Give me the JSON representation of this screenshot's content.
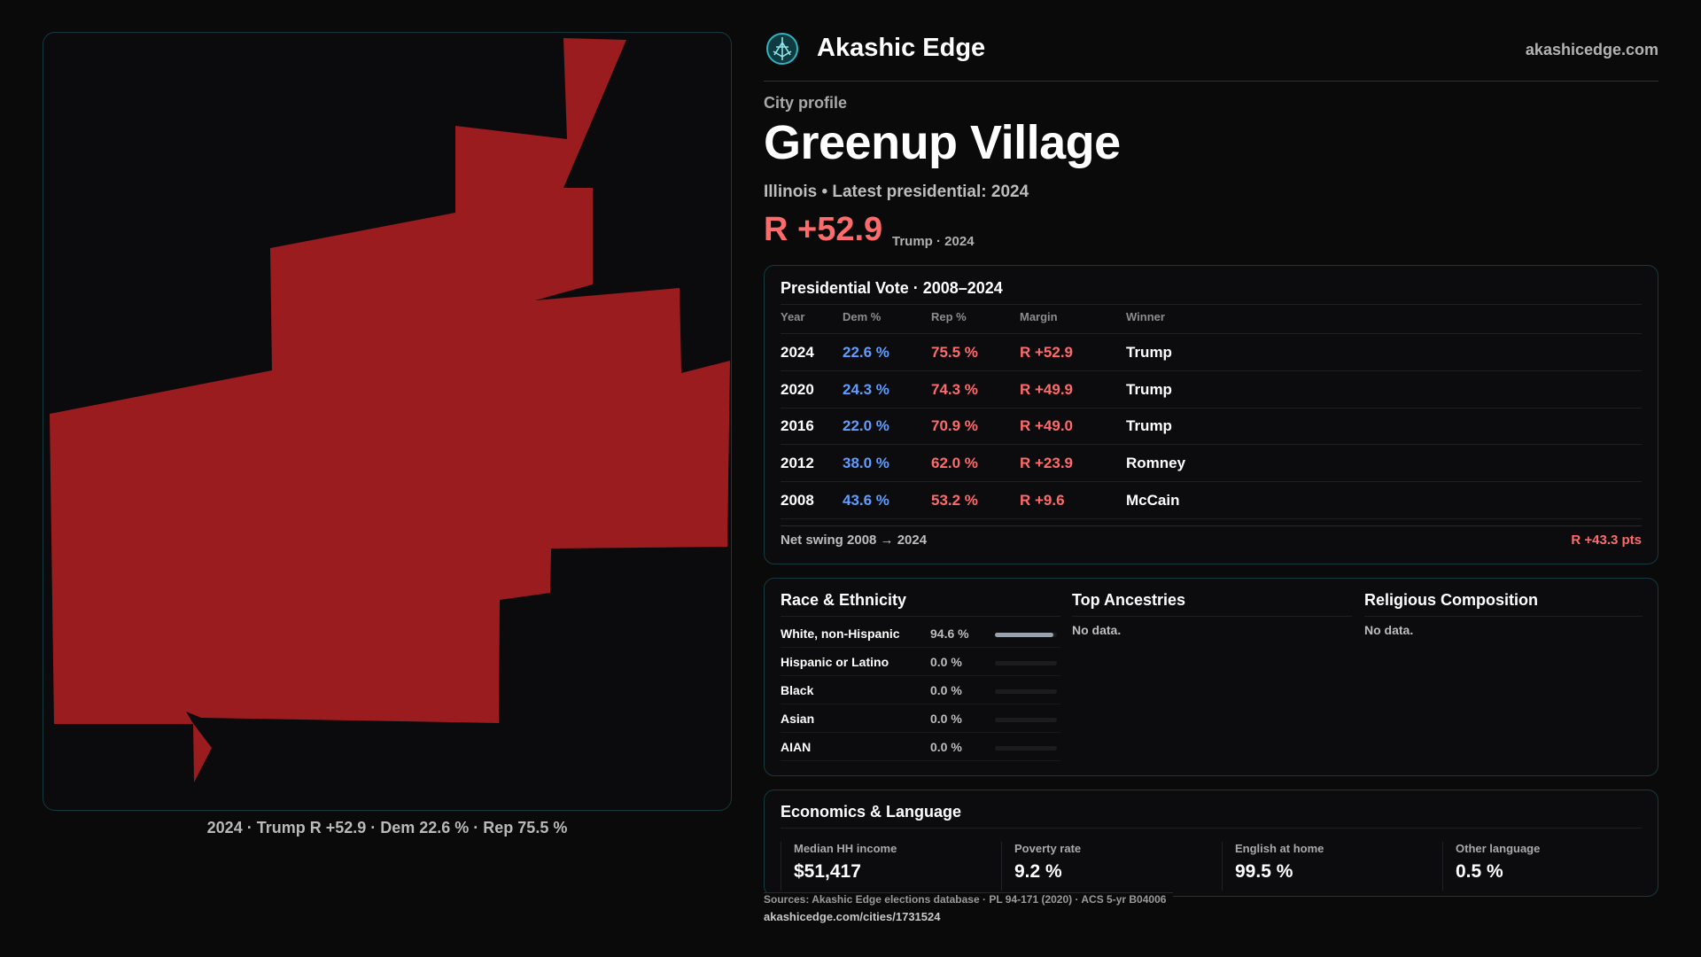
{
  "header": {
    "brand": "Akashic Edge",
    "site": "akashicedge.com"
  },
  "profile": {
    "eyebrow": "City profile",
    "city": "Greenup Village",
    "subtitle": "Illinois • Latest presidential: 2024",
    "margin": "R +52.9",
    "margin_note": "Trump · 2024"
  },
  "map": {
    "fill_color": "#9b1c1f",
    "caption": "2024 · Trump R +52.9 · Dem 22.6 % · Rep 75.5 %"
  },
  "presidential": {
    "title": "Presidential Vote · 2008–2024",
    "columns": [
      "Year",
      "Dem %",
      "Rep %",
      "Margin",
      "Winner"
    ],
    "rows": [
      {
        "year": "2024",
        "dem": "22.6 %",
        "rep": "75.5 %",
        "margin": "R +52.9",
        "winner": "Trump"
      },
      {
        "year": "2020",
        "dem": "24.3 %",
        "rep": "74.3 %",
        "margin": "R +49.9",
        "winner": "Trump"
      },
      {
        "year": "2016",
        "dem": "22.0 %",
        "rep": "70.9 %",
        "margin": "R +49.0",
        "winner": "Trump"
      },
      {
        "year": "2012",
        "dem": "38.0 %",
        "rep": "62.0 %",
        "margin": "R +23.9",
        "winner": "Romney"
      },
      {
        "year": "2008",
        "dem": "43.6 %",
        "rep": "53.2 %",
        "margin": "R +9.6",
        "winner": "McCain"
      }
    ],
    "swing_label": "Net swing 2008 → 2024",
    "swing_value": "R +43.3 pts"
  },
  "race": {
    "title": "Race & Ethnicity",
    "rows": [
      {
        "label": "White, non-Hispanic",
        "value": "94.6 %",
        "share": 0.946
      },
      {
        "label": "Hispanic or Latino",
        "value": "0.0 %",
        "share": 0
      },
      {
        "label": "Black",
        "value": "0.0 %",
        "share": 0
      },
      {
        "label": "Asian",
        "value": "0.0 %",
        "share": 0
      },
      {
        "label": "AIAN",
        "value": "0.0 %",
        "share": 0
      }
    ]
  },
  "ancestries": {
    "title": "Top Ancestries",
    "nodata": "No data."
  },
  "religion": {
    "title": "Religious Composition",
    "nodata": "No data."
  },
  "economics": {
    "title": "Economics & Language",
    "metrics": [
      {
        "label": "Median HH income",
        "value": "$51,417"
      },
      {
        "label": "Poverty rate",
        "value": "9.2 %"
      },
      {
        "label": "English at home",
        "value": "99.5 %"
      },
      {
        "label": "Other language",
        "value": "0.5 %"
      }
    ]
  },
  "footer": {
    "sources": "Sources: Akashic Edge elections database · PL 94-171 (2020) · ACS 5-yr B04006",
    "url": "akashicedge.com/cities/1731524"
  }
}
